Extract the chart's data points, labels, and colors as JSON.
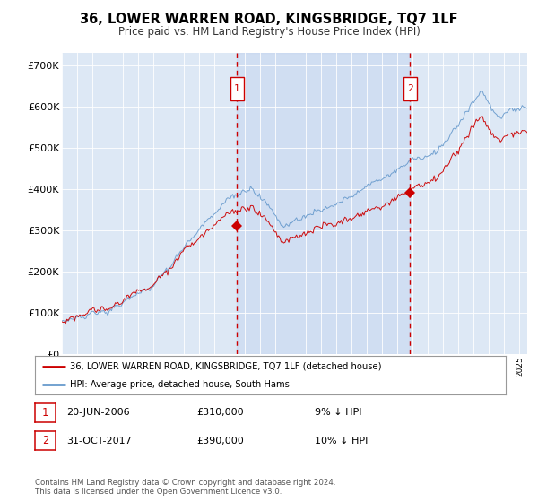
{
  "title": "36, LOWER WARREN ROAD, KINGSBRIDGE, TQ7 1LF",
  "subtitle": "Price paid vs. HM Land Registry's House Price Index (HPI)",
  "legend_line1": "36, LOWER WARREN ROAD, KINGSBRIDGE, TQ7 1LF (detached house)",
  "legend_line2": "HPI: Average price, detached house, South Hams",
  "annotation1_label": "1",
  "annotation1_date": "20-JUN-2006",
  "annotation1_price": "£310,000",
  "annotation1_hpi": "9% ↓ HPI",
  "annotation2_label": "2",
  "annotation2_date": "31-OCT-2017",
  "annotation2_price": "£390,000",
  "annotation2_hpi": "10% ↓ HPI",
  "footer": "Contains HM Land Registry data © Crown copyright and database right 2024.\nThis data is licensed under the Open Government Licence v3.0.",
  "hpi_color": "#6699cc",
  "price_color": "#cc0000",
  "vline_color": "#cc0000",
  "bg_color": "#dde8f5",
  "shade_color": "#c8d8ee",
  "annotation_box_color": "#cc0000",
  "ylim": [
    0,
    730000
  ],
  "yticks": [
    0,
    100000,
    200000,
    300000,
    400000,
    500000,
    600000,
    700000
  ],
  "ytick_labels": [
    "£0",
    "£100K",
    "£200K",
    "£300K",
    "£400K",
    "£500K",
    "£600K",
    "£700K"
  ],
  "sale1_x": 2006.47,
  "sale1_y": 310000,
  "sale2_x": 2017.83,
  "sale2_y": 390000,
  "xmin": 1995.0,
  "xmax": 2025.5
}
